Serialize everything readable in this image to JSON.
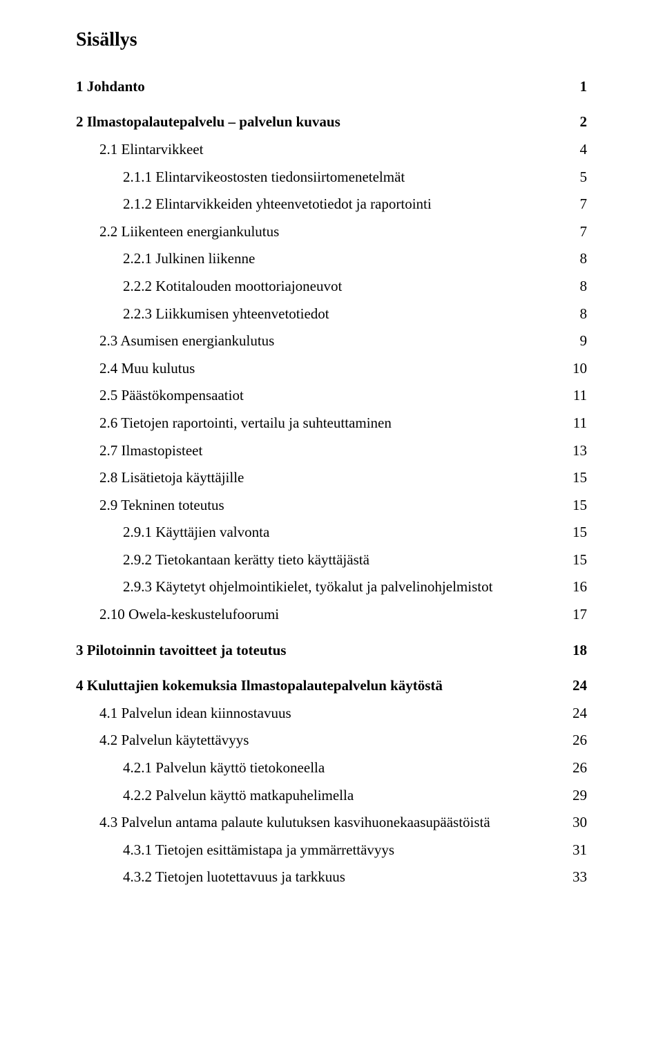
{
  "doc": {
    "heading": "Sisällys",
    "entries": [
      {
        "level": 1,
        "label": "1 Johdanto",
        "page": "1"
      },
      {
        "level": 1,
        "label": "2 Ilmastopalautepalvelu – palvelun kuvaus",
        "page": "2"
      },
      {
        "level": 2,
        "label": "2.1 Elintarvikkeet",
        "page": "4"
      },
      {
        "level": 3,
        "label": "2.1.1 Elintarvikeostosten tiedonsiirtomenetelmät",
        "page": "5"
      },
      {
        "level": 3,
        "label": "2.1.2 Elintarvikkeiden yhteenvetotiedot ja raportointi",
        "page": "7"
      },
      {
        "level": 2,
        "label": "2.2 Liikenteen energiankulutus",
        "page": "7"
      },
      {
        "level": 3,
        "label": "2.2.1 Julkinen liikenne",
        "page": "8"
      },
      {
        "level": 3,
        "label": "2.2.2 Kotitalouden moottoriajoneuvot",
        "page": "8"
      },
      {
        "level": 3,
        "label": "2.2.3 Liikkumisen yhteenvetotiedot",
        "page": "8"
      },
      {
        "level": 2,
        "label": "2.3 Asumisen energiankulutus",
        "page": "9"
      },
      {
        "level": 2,
        "label": "2.4 Muu kulutus",
        "page": "10"
      },
      {
        "level": 2,
        "label": "2.5 Päästökompensaatiot",
        "page": "11"
      },
      {
        "level": 2,
        "label": "2.6 Tietojen raportointi, vertailu ja suhteuttaminen",
        "page": "11"
      },
      {
        "level": 2,
        "label": "2.7 Ilmastopisteet",
        "page": "13"
      },
      {
        "level": 2,
        "label": "2.8 Lisätietoja käyttäjille",
        "page": "15"
      },
      {
        "level": 2,
        "label": "2.9 Tekninen toteutus",
        "page": "15"
      },
      {
        "level": 3,
        "label": "2.9.1 Käyttäjien valvonta",
        "page": "15"
      },
      {
        "level": 3,
        "label": "2.9.2 Tietokantaan kerätty tieto käyttäjästä",
        "page": "15"
      },
      {
        "level": 3,
        "label": "2.9.3 Käytetyt ohjelmointikielet, työkalut ja palvelinohjelmistot",
        "page": "16"
      },
      {
        "level": 2,
        "label": "2.10 Owela-keskustelufoorumi",
        "page": "17"
      },
      {
        "level": 1,
        "label": "3 Pilotoinnin tavoitteet ja toteutus",
        "page": "18"
      },
      {
        "level": 1,
        "label": "4 Kuluttajien kokemuksia Ilmastopalautepalvelun käytöstä",
        "page": "24"
      },
      {
        "level": 2,
        "label": "4.1 Palvelun idean kiinnostavuus",
        "page": "24"
      },
      {
        "level": 2,
        "label": "4.2 Palvelun käytettävyys",
        "page": "26"
      },
      {
        "level": 3,
        "label": "4.2.1 Palvelun käyttö tietokoneella",
        "page": "26"
      },
      {
        "level": 3,
        "label": "4.2.2 Palvelun käyttö matkapuhelimella",
        "page": "29"
      },
      {
        "level": 2,
        "label": "4.3 Palvelun antama palaute kulutuksen kasvihuonekaasupäästöistä",
        "page": "30"
      },
      {
        "level": 3,
        "label": "4.3.1 Tietojen esittämistapa ja ymmärrettävyys",
        "page": "31"
      },
      {
        "level": 3,
        "label": "4.3.2 Tietojen luotettavuus ja tarkkuus",
        "page": "33"
      }
    ]
  }
}
